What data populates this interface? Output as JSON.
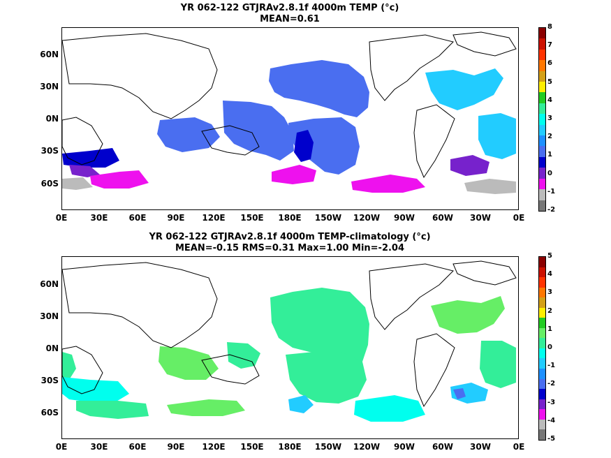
{
  "top": {
    "title_line1": "YR 062-122 GTJRAv2.8.1f 4000m TEMP (°c)",
    "title_line2": "MEAN=0.61",
    "colorbar_labels": [
      "8",
      "7",
      "6",
      "5",
      "4",
      "3",
      "2",
      "1",
      "0",
      "-1",
      "-2"
    ],
    "colorbar_colors": [
      "#8b0000",
      "#cc1100",
      "#ff3300",
      "#ff7700",
      "#d4a017",
      "#ffee00",
      "#22cc22",
      "#33ee99",
      "#00ffee",
      "#22ccff",
      "#1e90ff",
      "#4a6ef0",
      "#0000cc",
      "#7722cc",
      "#ee11ee",
      "#bbbbbb",
      "#777777"
    ]
  },
  "bottom": {
    "title_line1": "YR 062-122 GTJRAv2.8.1f 4000m TEMP-climatology (°c)",
    "title_line2": "MEAN=-0.15   RMS=0.31   Max=1.00   Min=-2.04",
    "colorbar_labels": [
      "5",
      "4",
      "3",
      "2",
      "1",
      "0",
      "-1",
      "-2",
      "-3",
      "-4",
      "-5"
    ],
    "colorbar_colors": [
      "#8b0000",
      "#cc1100",
      "#ff3300",
      "#ff7700",
      "#d4a017",
      "#ffee00",
      "#22cc22",
      "#66ee66",
      "#33ee99",
      "#00ffee",
      "#22ccff",
      "#1e90ff",
      "#4a6ef0",
      "#0000cc",
      "#7722cc",
      "#ee11ee",
      "#bbbbbb",
      "#777777"
    ]
  },
  "lat_labels": [
    "60N",
    "30N",
    "0N",
    "30S",
    "60S"
  ],
  "lon_labels": [
    "0E",
    "30E",
    "60E",
    "90E",
    "120E",
    "150E",
    "180E",
    "150W",
    "120W",
    "90W",
    "60W",
    "30W",
    "0E"
  ]
}
